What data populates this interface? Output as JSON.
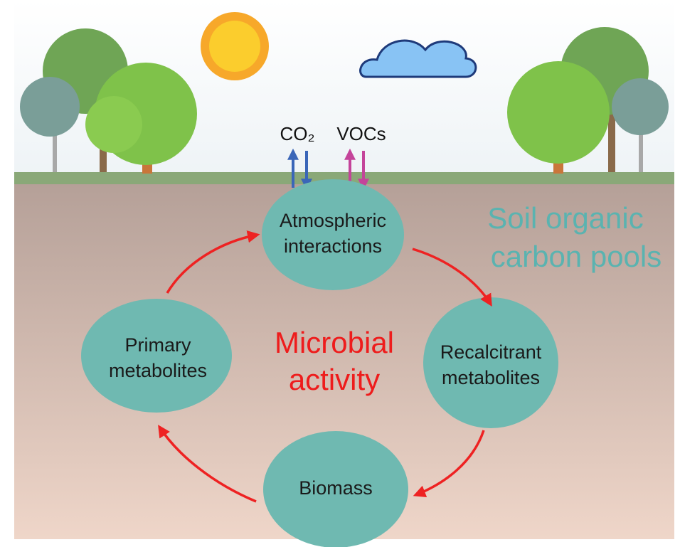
{
  "gases": [
    {
      "label": "CO₂"
    },
    {
      "label": "VOCs"
    }
  ],
  "soil_label": [
    "Soil organic",
    "carbon pools"
  ],
  "center_label": [
    "Microbial",
    "activity"
  ],
  "nodes": [
    {
      "label": [
        "Atmospheric",
        "interactions"
      ]
    },
    {
      "label": [
        "Recalcitrant",
        "metabolites"
      ]
    },
    {
      "label": [
        "Biomass"
      ]
    },
    {
      "label": [
        "Primary",
        "metabolites"
      ]
    }
  ]
}
